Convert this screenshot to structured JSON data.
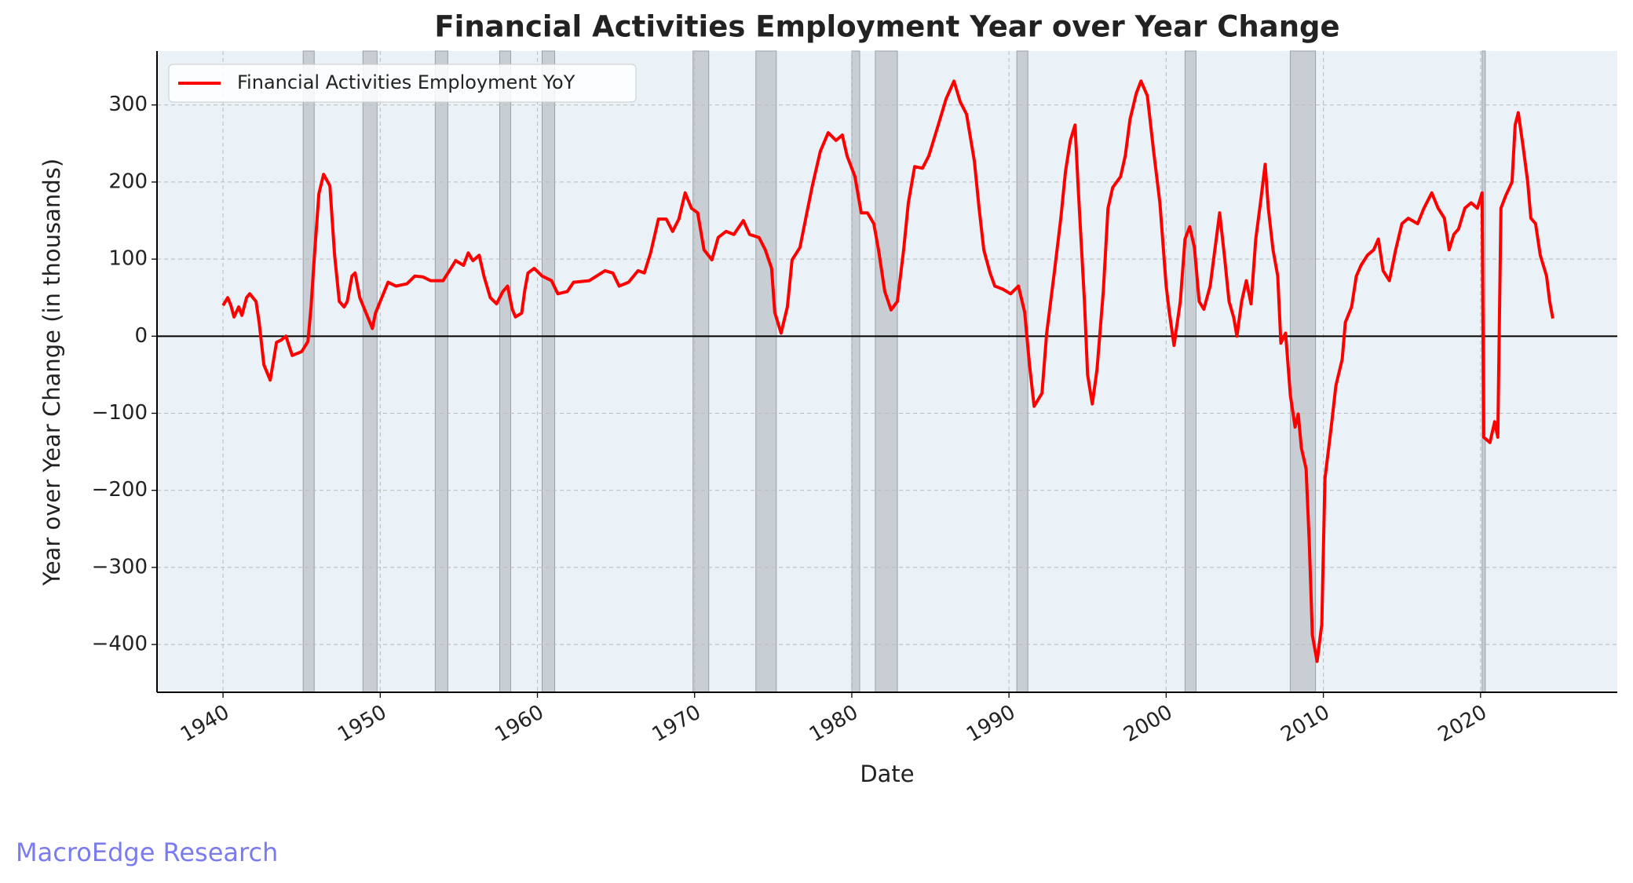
{
  "chart_data": {
    "type": "line",
    "title": "Financial Activities Employment Year over Year Change",
    "xlabel": "Date",
    "ylabel": "Year over Year Change (in thousands)",
    "xlim": [
      1935.8,
      2028.7
    ],
    "xticks": [
      1940,
      1950,
      1960,
      1970,
      1980,
      1990,
      2000,
      2010,
      2020
    ],
    "ylim": [
      -462,
      370
    ],
    "yticks": [
      {
        "value": -400,
        "label": "−400"
      },
      {
        "value": -300,
        "label": "−300"
      },
      {
        "value": -200,
        "label": "−200"
      },
      {
        "value": -100,
        "label": "−100"
      },
      0,
      100,
      200,
      300
    ],
    "grid": true,
    "legend": "upper left",
    "hline": 0,
    "recessions": [
      [
        1945.1,
        1945.8
      ],
      [
        1948.9,
        1949.8
      ],
      [
        1953.5,
        1954.3
      ],
      [
        1957.6,
        1958.3
      ],
      [
        1960.3,
        1961.1
      ],
      [
        1969.9,
        1970.9
      ],
      [
        1973.9,
        1975.2
      ],
      [
        1980.0,
        1980.5
      ],
      [
        1981.5,
        1982.9
      ],
      [
        1990.5,
        1991.2
      ],
      [
        2001.2,
        2001.9
      ],
      [
        2007.9,
        2009.5
      ],
      [
        2020.1,
        2020.3
      ]
    ],
    "series": [
      {
        "name": "Financial Activities Employment YoY",
        "color": "#ff0000",
        "x": [
          1940.0,
          1940.3,
          1940.5,
          1940.7,
          1941.0,
          1941.2,
          1941.5,
          1941.7,
          1942.1,
          1942.3,
          1942.6,
          1943.0,
          1943.4,
          1943.7,
          1944.0,
          1944.4,
          1945.0,
          1945.4,
          1945.6,
          1945.8,
          1946.1,
          1946.4,
          1946.8,
          1947.1,
          1947.4,
          1947.7,
          1947.9,
          1948.2,
          1948.4,
          1948.7,
          1949.1,
          1949.5,
          1949.7,
          1950.1,
          1950.5,
          1951.0,
          1951.7,
          1952.2,
          1952.7,
          1953.2,
          1954.0,
          1954.4,
          1954.8,
          1955.3,
          1955.6,
          1955.9,
          1956.3,
          1956.6,
          1957.0,
          1957.4,
          1957.8,
          1958.1,
          1958.4,
          1958.6,
          1959.0,
          1959.2,
          1959.4,
          1959.8,
          1960.3,
          1960.9,
          1961.3,
          1961.9,
          1962.3,
          1963.3,
          1964.3,
          1964.8,
          1965.2,
          1965.8,
          1966.4,
          1966.8,
          1967.2,
          1967.7,
          1968.2,
          1968.6,
          1969.0,
          1969.4,
          1969.8,
          1970.2,
          1970.6,
          1971.1,
          1971.5,
          1972.0,
          1972.5,
          1973.1,
          1973.5,
          1974.1,
          1974.5,
          1974.9,
          1975.1,
          1975.5,
          1975.9,
          1976.2,
          1976.7,
          1977.2,
          1977.5,
          1978.0,
          1978.5,
          1979.0,
          1979.4,
          1979.7,
          1980.2,
          1980.6,
          1981.0,
          1981.4,
          1981.7,
          1982.1,
          1982.5,
          1982.9,
          1983.3,
          1983.6,
          1984.0,
          1984.5,
          1984.9,
          1985.5,
          1986.0,
          1986.5,
          1986.9,
          1987.3,
          1987.8,
          1988.1,
          1988.4,
          1988.8,
          1989.1,
          1989.6,
          1990.1,
          1990.6,
          1991.0,
          1991.3,
          1991.6,
          1992.1,
          1992.4,
          1992.9,
          1993.3,
          1993.6,
          1993.9,
          1994.2,
          1994.4,
          1994.8,
          1995.0,
          1995.3,
          1995.6,
          1996.0,
          1996.3,
          1996.6,
          1997.1,
          1997.4,
          1997.7,
          1998.1,
          1998.4,
          1998.8,
          1999.2,
          1999.6,
          2000.0,
          2000.2,
          2000.5,
          2000.9,
          2001.2,
          2001.5,
          2001.8,
          2002.1,
          2002.4,
          2002.8,
          2003.1,
          2003.4,
          2003.7,
          2004.0,
          2004.3,
          2004.5,
          2004.8,
          2005.1,
          2005.4,
          2005.7,
          2006.0,
          2006.3,
          2006.5,
          2006.8,
          2007.1,
          2007.3,
          2007.6,
          2007.9,
          2008.2,
          2008.4,
          2008.6,
          2008.9,
          2009.1,
          2009.3,
          2009.6,
          2009.9,
          2010.1,
          2010.5,
          2010.8,
          2011.2,
          2011.4,
          2011.8,
          2012.1,
          2012.4,
          2012.8,
          2013.2,
          2013.5,
          2013.8,
          2014.2,
          2014.6,
          2015.0,
          2015.4,
          2016.0,
          2016.4,
          2016.9,
          2017.3,
          2017.7,
          2018.0,
          2018.3,
          2018.6,
          2019.0,
          2019.4,
          2019.8,
          2020.1,
          2020.2,
          2020.6,
          2020.9,
          2021.1,
          2021.3,
          2021.6,
          2022.0,
          2022.2,
          2022.4,
          2022.7,
          2023.0,
          2023.2,
          2023.5,
          2023.8,
          2024.2,
          2024.4,
          2024.6
        ],
        "values": [
          40,
          50,
          40,
          25,
          38,
          27,
          50,
          55,
          45,
          18,
          -37,
          -57,
          -8,
          -5,
          0,
          -25,
          -20,
          -7,
          38,
          100,
          185,
          210,
          195,
          105,
          45,
          38,
          45,
          78,
          82,
          50,
          30,
          10,
          30,
          50,
          70,
          65,
          68,
          78,
          77,
          72,
          72,
          85,
          98,
          92,
          108,
          98,
          105,
          78,
          50,
          42,
          58,
          65,
          35,
          25,
          30,
          60,
          82,
          88,
          78,
          72,
          55,
          58,
          70,
          72,
          85,
          82,
          65,
          70,
          85,
          82,
          108,
          152,
          152,
          136,
          152,
          186,
          166,
          160,
          112,
          99,
          128,
          136,
          132,
          150,
          132,
          128,
          112,
          88,
          31,
          4,
          38,
          99,
          115,
          166,
          196,
          240,
          264,
          254,
          261,
          234,
          207,
          160,
          160,
          146,
          112,
          58,
          34,
          45,
          112,
          173,
          220,
          218,
          234,
          274,
          308,
          331,
          304,
          288,
          227,
          166,
          112,
          82,
          65,
          61,
          55,
          65,
          31,
          -36,
          -91,
          -74,
          4,
          85,
          153,
          214,
          254,
          274,
          193,
          45,
          -50,
          -88,
          -43,
          58,
          166,
          193,
          207,
          234,
          281,
          315,
          331,
          312,
          240,
          173,
          65,
          31,
          -12,
          45,
          126,
          142,
          115,
          45,
          35,
          65,
          112,
          160,
          105,
          45,
          24,
          0,
          45,
          72,
          42,
          126,
          173,
          223,
          166,
          112,
          78,
          -9,
          4,
          -77,
          -118,
          -101,
          -145,
          -172,
          -266,
          -388,
          -422,
          -374,
          -185,
          -118,
          -64,
          -30,
          18,
          38,
          78,
          92,
          105,
          112,
          126,
          85,
          72,
          112,
          146,
          153,
          146,
          166,
          186,
          166,
          153,
          112,
          132,
          139,
          166,
          173,
          166,
          186,
          -131,
          -138,
          -111,
          -131,
          166,
          182,
          200,
          274,
          290,
          247,
          200,
          153,
          146,
          105,
          78,
          45,
          23
        ]
      }
    ]
  },
  "watermark": "MacroEdge Research"
}
